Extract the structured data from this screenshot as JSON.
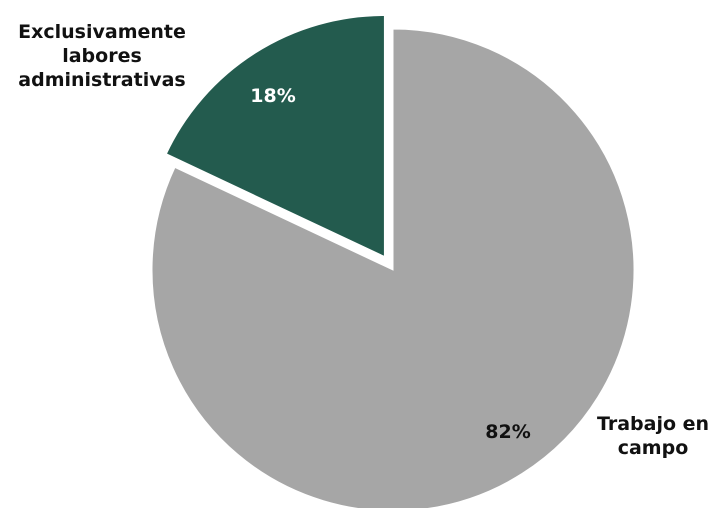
{
  "chart_data": {
    "type": "pie",
    "title": "",
    "start_angle_deg": 0,
    "direction": "clockwise",
    "exploded_category": "Exclusivamente labores administrativas",
    "slices": [
      {
        "category": "Trabajo en campo",
        "value": 82,
        "value_label": "82%",
        "label_lines": [
          "Trabajo en",
          "campo"
        ],
        "color": "#a6a6a6",
        "value_label_color": "#111111"
      },
      {
        "category": "Exclusivamente labores administrativas",
        "value": 18,
        "value_label": "18%",
        "label_lines": [
          "Exclusivamente",
          "labores",
          "administrativas"
        ],
        "color": "#235b4e",
        "value_label_color": "#ffffff"
      }
    ]
  }
}
